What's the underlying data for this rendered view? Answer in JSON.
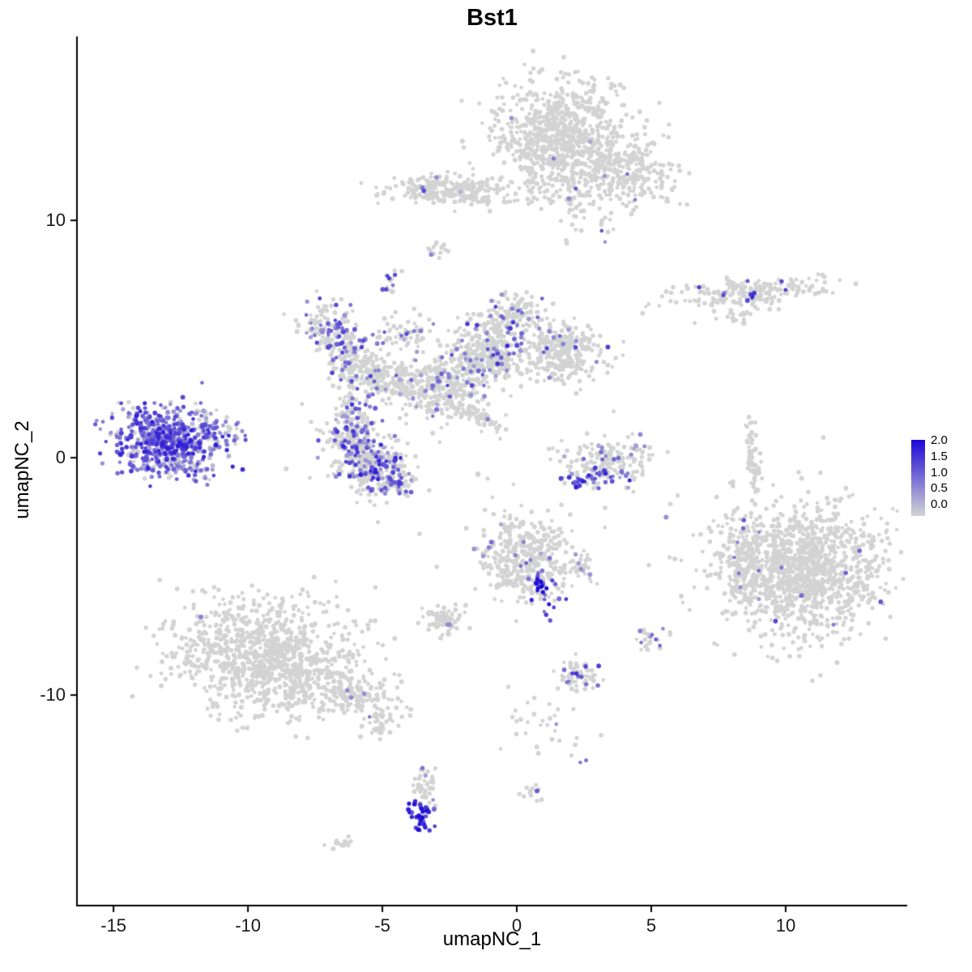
{
  "chart_data": {
    "type": "scatter",
    "title": "Bst1",
    "xlabel": "umapNC_1",
    "ylabel": "umapNC_2",
    "xlim": [
      -16.36,
      14.52
    ],
    "ylim": [
      -18.87,
      17.75
    ],
    "x_ticks": [
      "-15",
      "-10",
      "-5",
      "0",
      "5",
      "10"
    ],
    "y_ticks": [
      "10",
      "0",
      "-10"
    ],
    "grid": false,
    "background": "#ffffff",
    "point_color_low": "#d3d3d3",
    "point_color_high": "#1c08d6",
    "value_min": 0,
    "value_max": 2,
    "legend": {
      "position": "right",
      "ticks": [
        "2.0",
        "1.5",
        "1.0",
        "0.5",
        "0.0"
      ]
    },
    "seed": 7,
    "clusters": [
      {
        "name": "top-main",
        "cx": 1.6,
        "cy": 13.7,
        "sx": 1.15,
        "sy": 1.05,
        "rot": 0,
        "n": 750,
        "expr_frac": 0.004,
        "expr_min": 0.3,
        "expr_max": 0.8
      },
      {
        "name": "top-right-arm",
        "cx": 3.9,
        "cy": 12.1,
        "sx": 1.0,
        "sy": 0.7,
        "rot": -25,
        "n": 280,
        "expr_frac": 0.012,
        "expr_min": 0.5,
        "expr_max": 1.3
      },
      {
        "name": "top-lower-tail",
        "cx": 2.3,
        "cy": 10.9,
        "sx": 0.5,
        "sy": 0.8,
        "rot": 0,
        "n": 60,
        "expr_frac": 0.03,
        "expr_min": 0.5,
        "expr_max": 1.2
      },
      {
        "name": "top-neck",
        "cx": 0.8,
        "cy": 11.4,
        "sx": 0.55,
        "sy": 0.45,
        "rot": 0,
        "n": 35,
        "expr_frac": 0.06,
        "expr_min": 0.5,
        "expr_max": 1.2
      },
      {
        "name": "dot-3-9",
        "cx": 3.35,
        "cy": 9.4,
        "sx": 0.15,
        "sy": 0.15,
        "rot": 0,
        "n": 3,
        "expr_frac": 0.6,
        "expr_min": 0.6,
        "expr_max": 1.2
      },
      {
        "name": "band-11",
        "cx": -2.7,
        "cy": 11.3,
        "sx": 1.05,
        "sy": 0.3,
        "rot": 0,
        "n": 200,
        "expr_frac": 0.02,
        "expr_min": 0.4,
        "expr_max": 1.0
      },
      {
        "name": "band-11-purple-tip",
        "cx": -3.45,
        "cy": 11.35,
        "sx": 0.12,
        "sy": 0.15,
        "rot": 0,
        "n": 6,
        "expr_frac": 0.7,
        "expr_min": 0.8,
        "expr_max": 1.6
      },
      {
        "name": "band-11-right-sparse",
        "cx": -0.9,
        "cy": 11.0,
        "sx": 0.8,
        "sy": 0.25,
        "rot": 0,
        "n": 40,
        "expr_frac": 0.0,
        "expr_min": 0,
        "expr_max": 0
      },
      {
        "name": "blob-9",
        "cx": -2.95,
        "cy": 8.75,
        "sx": 0.22,
        "sy": 0.18,
        "rot": 0,
        "n": 14,
        "expr_frac": 0.15,
        "expr_min": 0.5,
        "expr_max": 1.0
      },
      {
        "name": "blob-7",
        "cx": -4.65,
        "cy": 7.35,
        "sx": 0.18,
        "sy": 0.25,
        "rot": 0,
        "n": 16,
        "expr_frac": 0.35,
        "expr_min": 0.8,
        "expr_max": 1.5
      },
      {
        "name": "right-band-7",
        "cx": 8.6,
        "cy": 7.0,
        "sx": 1.5,
        "sy": 0.28,
        "rot": 5,
        "n": 210,
        "expr_frac": 0.04,
        "expr_min": 0.5,
        "expr_max": 1.5
      },
      {
        "name": "right-band-7-purple",
        "cx": 8.55,
        "cy": 6.95,
        "sx": 0.15,
        "sy": 0.12,
        "rot": 0,
        "n": 5,
        "expr_frac": 0.9,
        "expr_min": 1.0,
        "expr_max": 1.8
      },
      {
        "name": "right-band-7-tail",
        "cx": 8.4,
        "cy": 6.0,
        "sx": 0.5,
        "sy": 0.25,
        "rot": 0,
        "n": 18,
        "expr_frac": 0,
        "expr_min": 0,
        "expr_max": 0
      },
      {
        "name": "branch-a",
        "cx": -7.0,
        "cy": 5.5,
        "sx": 0.55,
        "sy": 0.55,
        "rot": 0,
        "n": 110,
        "expr_frac": 0.3,
        "expr_min": 0.5,
        "expr_max": 1.5
      },
      {
        "name": "branch-b",
        "cx": -6.3,
        "cy": 4.3,
        "sx": 0.5,
        "sy": 0.5,
        "rot": 0,
        "n": 120,
        "expr_frac": 0.25,
        "expr_min": 0.5,
        "expr_max": 1.5
      },
      {
        "name": "branch-c",
        "cx": -5.2,
        "cy": 3.4,
        "sx": 0.7,
        "sy": 0.45,
        "rot": -20,
        "n": 160,
        "expr_frac": 0.12,
        "expr_min": 0.4,
        "expr_max": 1.4
      },
      {
        "name": "branch-d",
        "cx": -3.6,
        "cy": 3.0,
        "sx": 0.8,
        "sy": 0.5,
        "rot": -10,
        "n": 170,
        "expr_frac": 0.1,
        "expr_min": 0.4,
        "expr_max": 1.4
      },
      {
        "name": "branch-e",
        "cx": -2.0,
        "cy": 3.6,
        "sx": 0.7,
        "sy": 0.6,
        "rot": 0,
        "n": 160,
        "expr_frac": 0.1,
        "expr_min": 0.4,
        "expr_max": 1.4
      },
      {
        "name": "branch-f",
        "cx": -1.2,
        "cy": 4.9,
        "sx": 0.55,
        "sy": 0.6,
        "rot": 0,
        "n": 170,
        "expr_frac": 0.12,
        "expr_min": 0.5,
        "expr_max": 1.8
      },
      {
        "name": "branch-g",
        "cx": 0.0,
        "cy": 6.0,
        "sx": 0.5,
        "sy": 0.45,
        "rot": 0,
        "n": 120,
        "expr_frac": 0.08,
        "expr_min": 0.5,
        "expr_max": 1.5
      },
      {
        "name": "branch-h",
        "cx": -0.6,
        "cy": 4.2,
        "sx": 0.5,
        "sy": 0.5,
        "rot": 0,
        "n": 120,
        "expr_frac": 0.1,
        "expr_min": 0.4,
        "expr_max": 1.4
      },
      {
        "name": "branch-i",
        "cx": 1.6,
        "cy": 4.4,
        "sx": 0.75,
        "sy": 0.6,
        "rot": 0,
        "n": 300,
        "expr_frac": 0.06,
        "expr_min": 0.5,
        "expr_max": 1.5
      },
      {
        "name": "branch-m",
        "cx": -4.2,
        "cy": 5.2,
        "sx": 0.6,
        "sy": 0.4,
        "rot": 0,
        "n": 60,
        "expr_frac": 0.15,
        "expr_min": 0.4,
        "expr_max": 1.4
      },
      {
        "name": "branch-l",
        "cx": -6.2,
        "cy": 2.0,
        "sx": 0.3,
        "sy": 0.5,
        "rot": 0,
        "n": 40,
        "expr_frac": 0.2,
        "expr_min": 0.4,
        "expr_max": 1.4
      },
      {
        "name": "branch-streak",
        "cx": -1.5,
        "cy": 1.75,
        "sx": 0.75,
        "sy": 0.18,
        "rot": -32,
        "n": 70,
        "expr_frac": 0.03,
        "expr_min": 0.4,
        "expr_max": 1.0
      },
      {
        "name": "branch-k",
        "cx": -2.6,
        "cy": 2.4,
        "sx": 0.5,
        "sy": 0.4,
        "rot": 0,
        "n": 50,
        "expr_frac": 0.05,
        "expr_min": 0.4,
        "expr_max": 1.0
      },
      {
        "name": "centerleft-a",
        "cx": -6.1,
        "cy": 0.9,
        "sx": 0.55,
        "sy": 0.5,
        "rot": 0,
        "n": 180,
        "expr_frac": 0.3,
        "expr_min": 0.4,
        "expr_max": 1.6
      },
      {
        "name": "centerleft-b",
        "cx": -5.3,
        "cy": -0.3,
        "sx": 0.6,
        "sy": 0.6,
        "rot": 0,
        "n": 260,
        "expr_frac": 0.3,
        "expr_min": 0.4,
        "expr_max": 1.8
      },
      {
        "name": "centerleft-c",
        "cx": -4.5,
        "cy": -0.9,
        "sx": 0.35,
        "sy": 0.35,
        "rot": 0,
        "n": 70,
        "expr_frac": 0.35,
        "expr_min": 0.4,
        "expr_max": 1.6
      },
      {
        "name": "left-high",
        "cx": -13.1,
        "cy": 0.75,
        "sx": 1.0,
        "sy": 0.65,
        "rot": -10,
        "n": 600,
        "expr_frac": 0.85,
        "expr_min": 0.2,
        "expr_max": 1.8
      },
      {
        "name": "left-high-tail",
        "cx": -11.3,
        "cy": 1.3,
        "sx": 0.6,
        "sy": 0.35,
        "rot": -20,
        "n": 60,
        "expr_frac": 0.7,
        "expr_min": 0.2,
        "expr_max": 1.4
      },
      {
        "name": "left-high-bottom",
        "cx": -12.6,
        "cy": -0.4,
        "sx": 0.8,
        "sy": 0.3,
        "rot": 0,
        "n": 60,
        "expr_frac": 0.6,
        "expr_min": 0.2,
        "expr_max": 1.4
      },
      {
        "name": "crescent",
        "cx": 3.3,
        "cy": -0.2,
        "sx": 0.8,
        "sy": 0.5,
        "rot": 0,
        "n": 170,
        "expr_frac": 0.12,
        "expr_min": 0.4,
        "expr_max": 1.2
      },
      {
        "name": "crescent-bottom",
        "cx": 3.1,
        "cy": -0.8,
        "sx": 0.6,
        "sy": 0.15,
        "rot": 8,
        "n": 40,
        "expr_frac": 0.8,
        "expr_min": 0.8,
        "expr_max": 1.8
      },
      {
        "name": "strip-right",
        "cx": 8.75,
        "cy": 0.3,
        "sx": 0.12,
        "sy": 0.75,
        "rot": 0,
        "n": 45,
        "expr_frac": 0,
        "expr_min": 0,
        "expr_max": 0
      },
      {
        "name": "strip-right-b",
        "cx": 8.95,
        "cy": -0.9,
        "sx": 0.1,
        "sy": 0.3,
        "rot": 0,
        "n": 15,
        "expr_frac": 0,
        "expr_min": 0,
        "expr_max": 0
      },
      {
        "name": "right-big",
        "cx": 10.7,
        "cy": -4.7,
        "sx": 1.5,
        "sy": 1.35,
        "rot": 0,
        "n": 1250,
        "expr_frac": 0.006,
        "expr_min": 0.6,
        "expr_max": 1.4
      },
      {
        "name": "right-big-west-arm",
        "cx": 8.45,
        "cy": -4.4,
        "sx": 0.35,
        "sy": 1.0,
        "rot": 0,
        "n": 130,
        "expr_frac": 0.05,
        "expr_min": 0.5,
        "expr_max": 1.2
      },
      {
        "name": "center-mid",
        "cx": 0.3,
        "cy": -4.2,
        "sx": 0.85,
        "sy": 0.8,
        "rot": 0,
        "n": 380,
        "expr_frac": 0.035,
        "expr_min": 0.4,
        "expr_max": 1.2
      },
      {
        "name": "center-mid-streak",
        "cx": 1.0,
        "cy": -5.5,
        "sx": 0.25,
        "sy": 0.55,
        "rot": 20,
        "n": 45,
        "expr_frac": 0.75,
        "expr_min": 0.8,
        "expr_max": 2.0
      },
      {
        "name": "center-mid-arm",
        "cx": 2.3,
        "cy": -4.6,
        "sx": 0.3,
        "sy": 0.25,
        "rot": 0,
        "n": 35,
        "expr_frac": 0.05,
        "expr_min": 0.4,
        "expr_max": 1.0
      },
      {
        "name": "bottomleft-big",
        "cx": -9.4,
        "cy": -8.4,
        "sx": 1.7,
        "sy": 1.15,
        "rot": -8,
        "n": 1050,
        "expr_frac": 0.002,
        "expr_min": 0.5,
        "expr_max": 1.0
      },
      {
        "name": "bottomleft-tail",
        "cx": -5.9,
        "cy": -9.9,
        "sx": 0.9,
        "sy": 0.45,
        "rot": -25,
        "n": 130,
        "expr_frac": 0.01,
        "expr_min": 0.4,
        "expr_max": 0.9
      },
      {
        "name": "bottomleft-specks",
        "cx": -5.0,
        "cy": -11.3,
        "sx": 0.3,
        "sy": 0.3,
        "rot": 0,
        "n": 25,
        "expr_frac": 0,
        "expr_min": 0,
        "expr_max": 0
      },
      {
        "name": "small-west",
        "cx": -2.8,
        "cy": -6.8,
        "sx": 0.45,
        "sy": 0.3,
        "rot": 0,
        "n": 70,
        "expr_frac": 0.01,
        "expr_min": 0.4,
        "expr_max": 0.8
      },
      {
        "name": "small-5-east",
        "cx": 5.0,
        "cy": -7.6,
        "sx": 0.25,
        "sy": 0.3,
        "rot": 0,
        "n": 28,
        "expr_frac": 0.15,
        "expr_min": 0.6,
        "expr_max": 1.2
      },
      {
        "name": "small-2-south",
        "cx": 2.2,
        "cy": -9.2,
        "sx": 0.4,
        "sy": 0.3,
        "rot": 0,
        "n": 65,
        "expr_frac": 0.12,
        "expr_min": 0.8,
        "expr_max": 1.6
      },
      {
        "name": "south-trail",
        "cx": 1.1,
        "cy": -11.3,
        "sx": 0.8,
        "sy": 0.55,
        "rot": -38,
        "n": 30,
        "expr_frac": 0.05,
        "expr_min": 0.4,
        "expr_max": 1.0
      },
      {
        "name": "south-trail-dot",
        "cx": 2.4,
        "cy": -12.9,
        "sx": 0.1,
        "sy": 0.1,
        "rot": 0,
        "n": 2,
        "expr_frac": 1.0,
        "expr_min": 0.8,
        "expr_max": 1.2
      },
      {
        "name": "bottom-grey",
        "cx": -3.45,
        "cy": -13.9,
        "sx": 0.25,
        "sy": 0.45,
        "rot": 0,
        "n": 45,
        "expr_frac": 0.1,
        "expr_min": 0.5,
        "expr_max": 1.0
      },
      {
        "name": "bottom-high",
        "cx": -3.55,
        "cy": -15.1,
        "sx": 0.22,
        "sy": 0.35,
        "rot": 0,
        "n": 40,
        "expr_frac": 0.95,
        "expr_min": 1.0,
        "expr_max": 2.0
      },
      {
        "name": "small-0-south",
        "cx": 0.65,
        "cy": -14.0,
        "sx": 0.18,
        "sy": 0.2,
        "rot": 0,
        "n": 14,
        "expr_frac": 0.2,
        "expr_min": 0.8,
        "expr_max": 1.4
      },
      {
        "name": "tiny-sw",
        "cx": -6.35,
        "cy": -16.2,
        "sx": 0.35,
        "sy": 0.12,
        "rot": 10,
        "n": 16,
        "expr_frac": 0,
        "expr_min": 0,
        "expr_max": 0
      },
      {
        "name": "sparse-field",
        "cx": -0.5,
        "cy": -0.5,
        "sx": 3.5,
        "sy": 2.2,
        "rot": 0,
        "n": 30,
        "expr_frac": 0.03,
        "expr_min": 0.4,
        "expr_max": 1.0
      }
    ]
  }
}
